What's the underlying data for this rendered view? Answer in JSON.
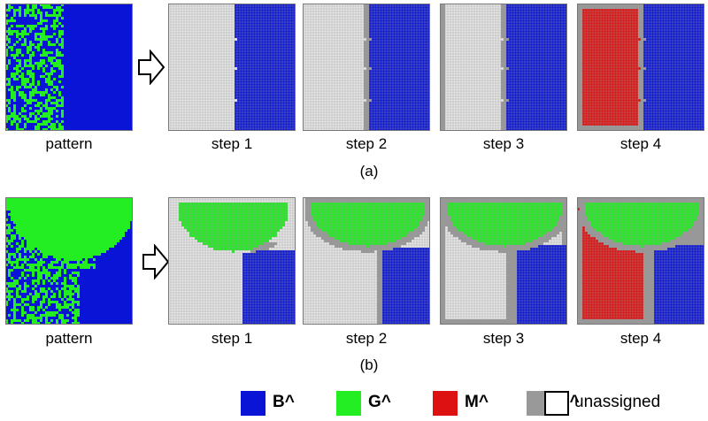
{
  "colors": {
    "B": "#0a14d6",
    "G": "#22ee22",
    "M": "#dd1111",
    "E": "#999999",
    "unassigned": "#e8e8e8",
    "grid": "#9a9a9a"
  },
  "row_a": {
    "label": "(a)",
    "panels": [
      {
        "caption": "pattern"
      },
      {
        "caption": "step 1"
      },
      {
        "caption": "step 2"
      },
      {
        "caption": "step 3"
      },
      {
        "caption": "step 4"
      }
    ]
  },
  "row_b": {
    "label": "(b)",
    "panels": [
      {
        "caption": "pattern"
      },
      {
        "caption": "step 1"
      },
      {
        "caption": "step 2"
      },
      {
        "caption": "step 3"
      },
      {
        "caption": "step 4"
      }
    ]
  },
  "legend": [
    {
      "key": "B",
      "label": "B^"
    },
    {
      "key": "G",
      "label": "G^"
    },
    {
      "key": "M",
      "label": "M^"
    },
    {
      "key": "E",
      "label": "E^"
    },
    {
      "key": "unassigned",
      "label": "unassigned"
    }
  ]
}
